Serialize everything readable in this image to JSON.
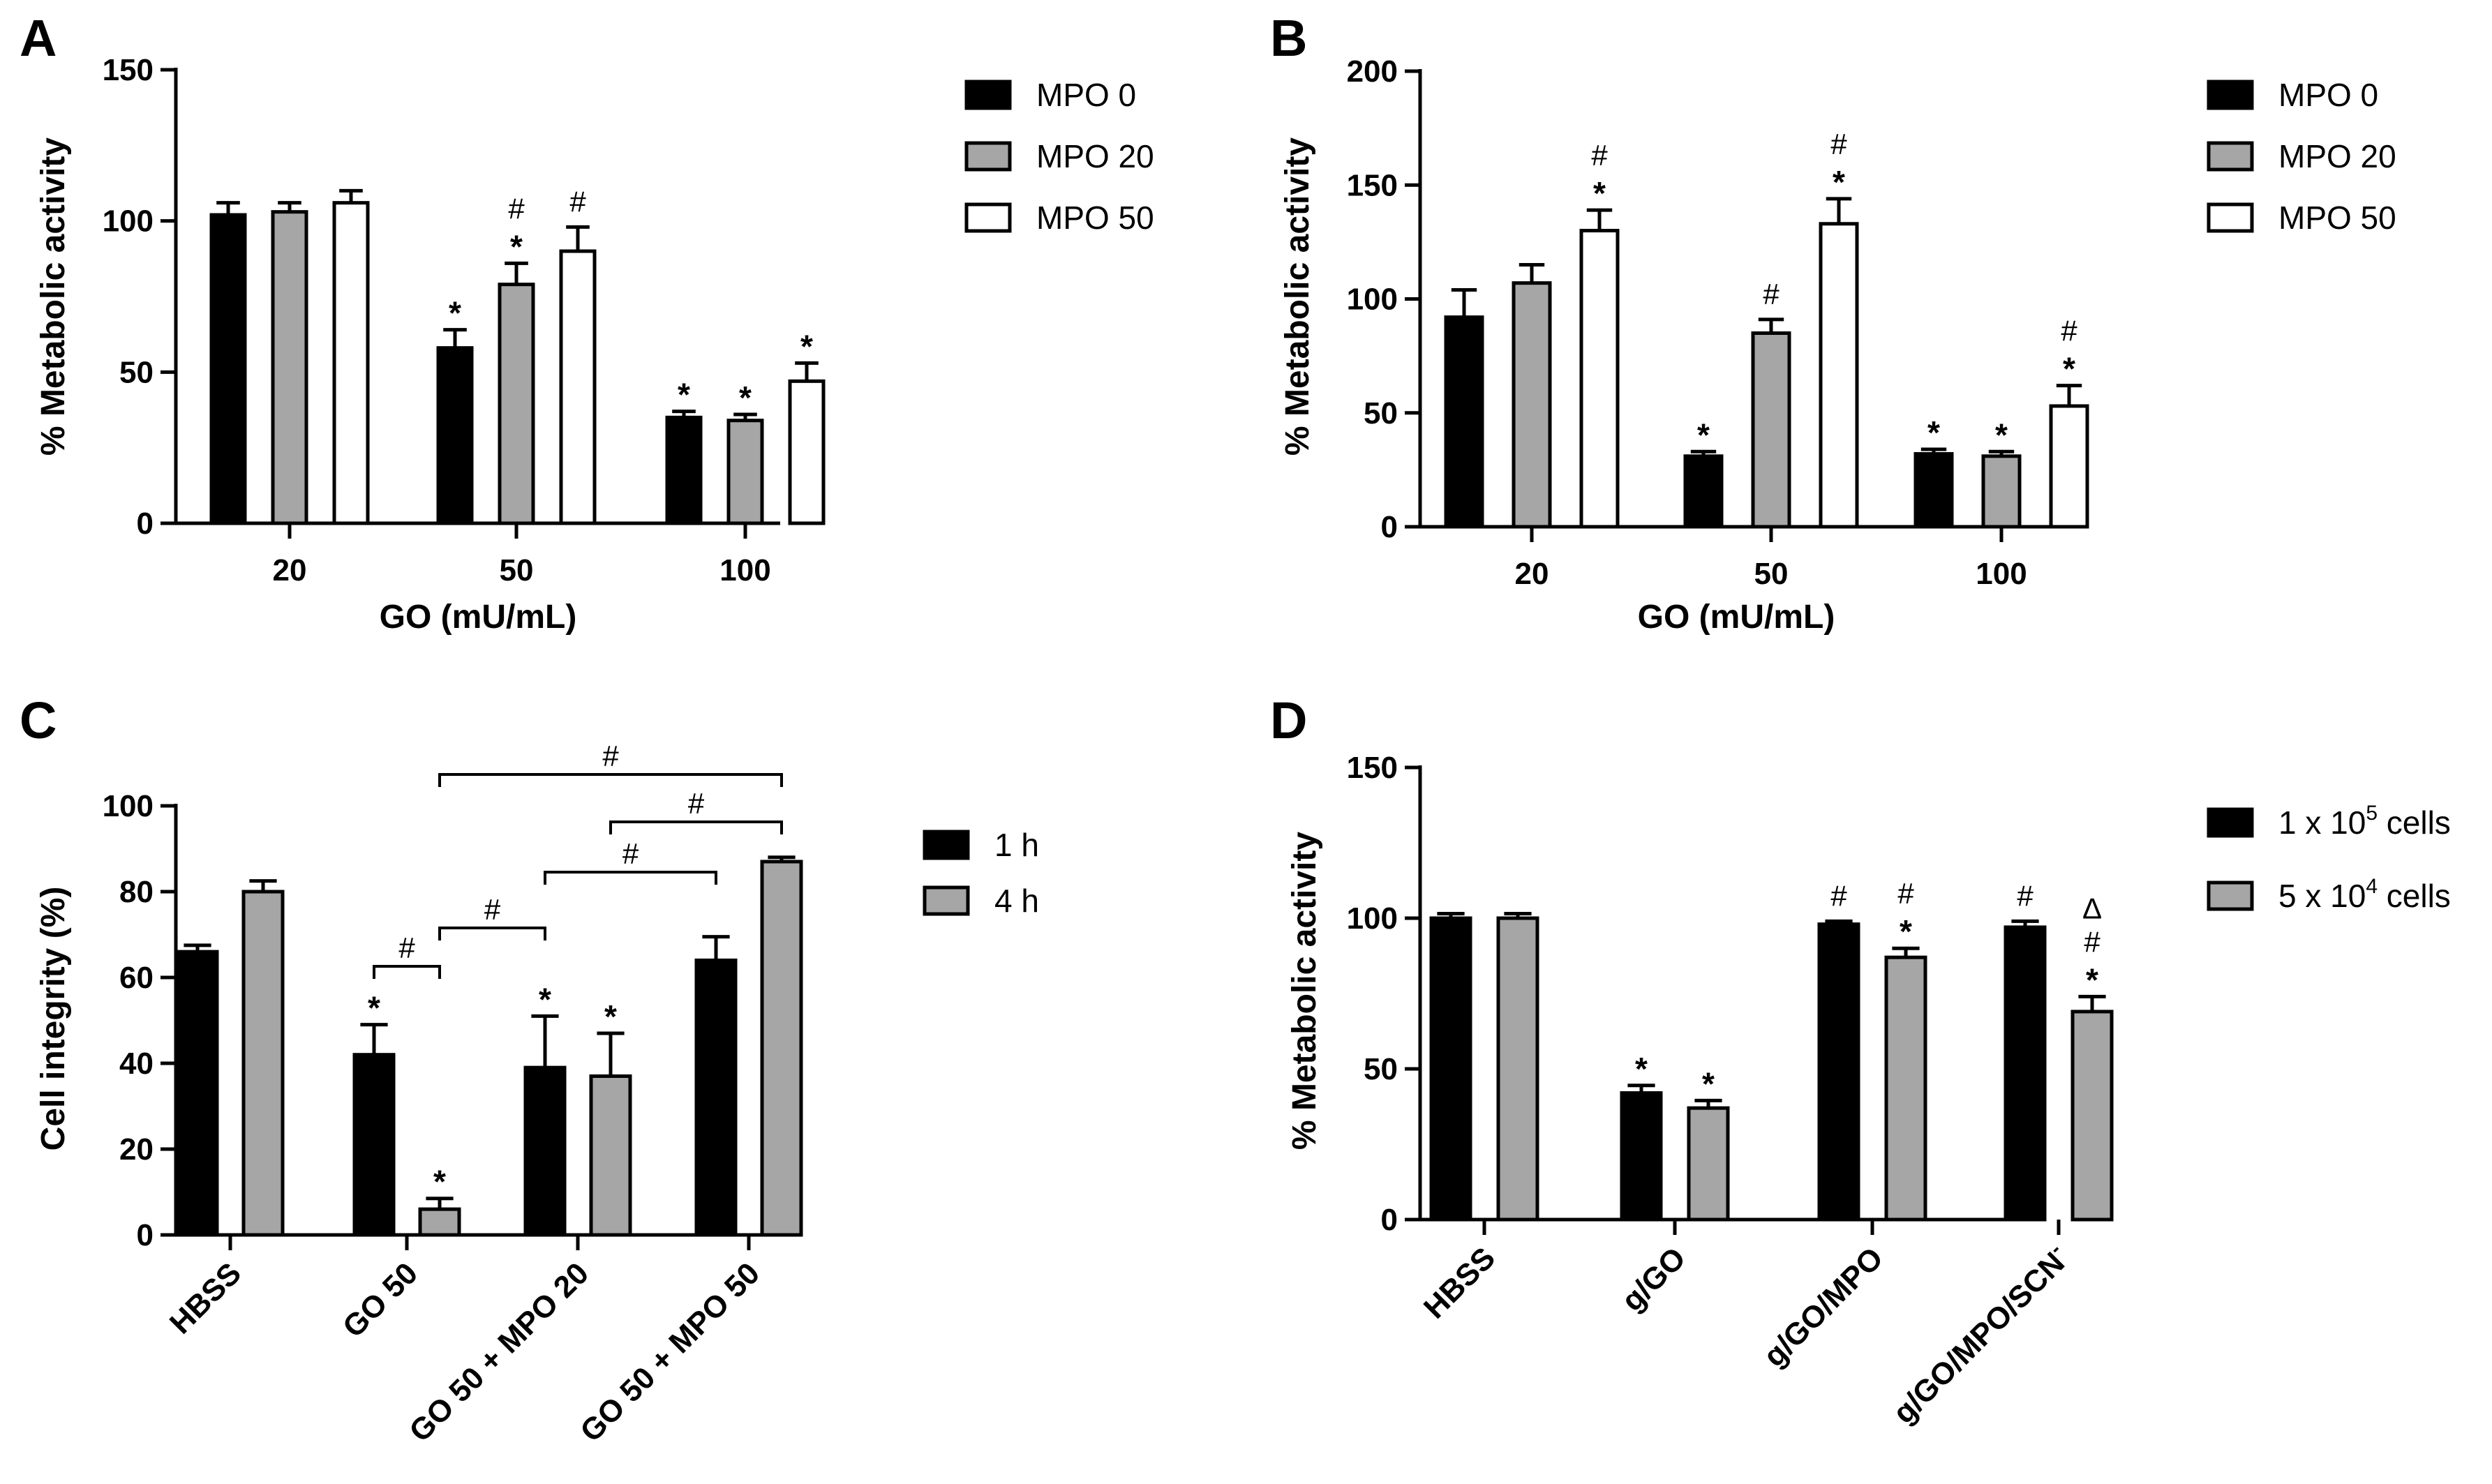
{
  "colors": {
    "black": "#000000",
    "gray": "#a6a6a6",
    "white": "#ffffff"
  },
  "chart_data": [
    {
      "panel": "A",
      "type": "bar",
      "ylabel": "% Metabolic activity",
      "xlabel": "GO (mU/mL)",
      "ylim": [
        0,
        150
      ],
      "yticks": [
        "0",
        "50",
        "100",
        "150"
      ],
      "categories": [
        "20",
        "50",
        "100"
      ],
      "series": [
        {
          "name": "MPO 0",
          "color": "#000000",
          "values": [
            102,
            58,
            35
          ],
          "errors": [
            4,
            6,
            2
          ],
          "marks": [
            "",
            "*",
            "*"
          ]
        },
        {
          "name": "MPO 20",
          "color": "#a6a6a6",
          "values": [
            103,
            79,
            34
          ],
          "errors": [
            3,
            7,
            2
          ],
          "marks": [
            "",
            "#\n*",
            "*"
          ]
        },
        {
          "name": "MPO 50",
          "color": "#ffffff",
          "values": [
            106,
            90,
            47
          ],
          "errors": [
            4,
            8,
            6
          ],
          "marks": [
            "",
            "#",
            "*"
          ]
        }
      ]
    },
    {
      "panel": "B",
      "type": "bar",
      "ylabel": "% Metabolic activity",
      "xlabel": "GO (mU/mL)",
      "ylim": [
        0,
        200
      ],
      "yticks": [
        "0",
        "50",
        "100",
        "150",
        "200"
      ],
      "categories": [
        "20",
        "50",
        "100"
      ],
      "series": [
        {
          "name": "MPO 0",
          "color": "#000000",
          "values": [
            92,
            31,
            32
          ],
          "errors": [
            12,
            2,
            2
          ],
          "marks": [
            "",
            "*",
            "*"
          ]
        },
        {
          "name": "MPO 20",
          "color": "#a6a6a6",
          "values": [
            107,
            85,
            31
          ],
          "errors": [
            8,
            6,
            2
          ],
          "marks": [
            "",
            "#",
            "*"
          ]
        },
        {
          "name": "MPO 50",
          "color": "#ffffff",
          "values": [
            130,
            133,
            53
          ],
          "errors": [
            9,
            11,
            9
          ],
          "marks": [
            "#\n*",
            "#\n*",
            "#\n*"
          ]
        }
      ]
    },
    {
      "panel": "C",
      "type": "bar",
      "ylabel": "Cell integrity (%)",
      "xlabel": "",
      "ylim": [
        0,
        100
      ],
      "yticks": [
        "0",
        "20",
        "40",
        "60",
        "80",
        "100"
      ],
      "categories": [
        "HBSS",
        "GO 50",
        "GO 50 + MPO 20",
        "GO 50 + MPO 50"
      ],
      "series": [
        {
          "name": "1 h",
          "color": "#000000",
          "values": [
            66,
            42,
            39,
            64
          ],
          "errors": [
            1.5,
            7,
            12,
            5.5
          ],
          "marks": [
            "",
            "*",
            "*",
            ""
          ]
        },
        {
          "name": "4 h",
          "color": "#a6a6a6",
          "values": [
            80,
            6,
            37,
            87
          ],
          "errors": [
            2.5,
            2.5,
            10,
            1
          ],
          "marks": [
            "",
            "*",
            "*",
            ""
          ]
        }
      ],
      "comparisons": [
        {
          "label": "#",
          "from": [
            1,
            0
          ],
          "to": [
            1,
            1
          ]
        },
        {
          "label": "#",
          "from": [
            1,
            1
          ],
          "to": [
            2,
            0
          ]
        },
        {
          "label": "#",
          "from": [
            2,
            0
          ],
          "to": [
            3,
            0
          ]
        },
        {
          "label": "#",
          "from": [
            2,
            1
          ],
          "to": [
            3,
            1
          ]
        },
        {
          "label": "#",
          "from": [
            1,
            1
          ],
          "to": [
            3,
            1
          ]
        }
      ]
    },
    {
      "panel": "D",
      "type": "bar",
      "ylabel": "% Metabolic activity",
      "xlabel": "",
      "ylim": [
        0,
        150
      ],
      "yticks": [
        "0",
        "50",
        "100",
        "150"
      ],
      "categories": [
        "HBSS",
        "g/GO",
        "g/GO/MPO",
        "g/GO/MPO/SCN"
      ],
      "category_superscripts": [
        "",
        "",
        "",
        "-"
      ],
      "series": [
        {
          "name": "1 x 10",
          "name_sup": "5",
          "name_tail": " cells",
          "color": "#000000",
          "values": [
            100,
            42,
            98,
            97
          ],
          "errors": [
            1.5,
            2.5,
            1,
            2
          ],
          "marks": [
            "",
            "*",
            "#",
            "#"
          ]
        },
        {
          "name": "5 x 10",
          "name_sup": "4",
          "name_tail": " cells",
          "color": "#a6a6a6",
          "values": [
            100,
            37,
            87,
            69
          ],
          "errors": [
            1.5,
            2.5,
            3,
            5
          ],
          "marks": [
            "",
            "*",
            "#\n*",
            "Δ\n#\n*"
          ]
        }
      ]
    }
  ]
}
